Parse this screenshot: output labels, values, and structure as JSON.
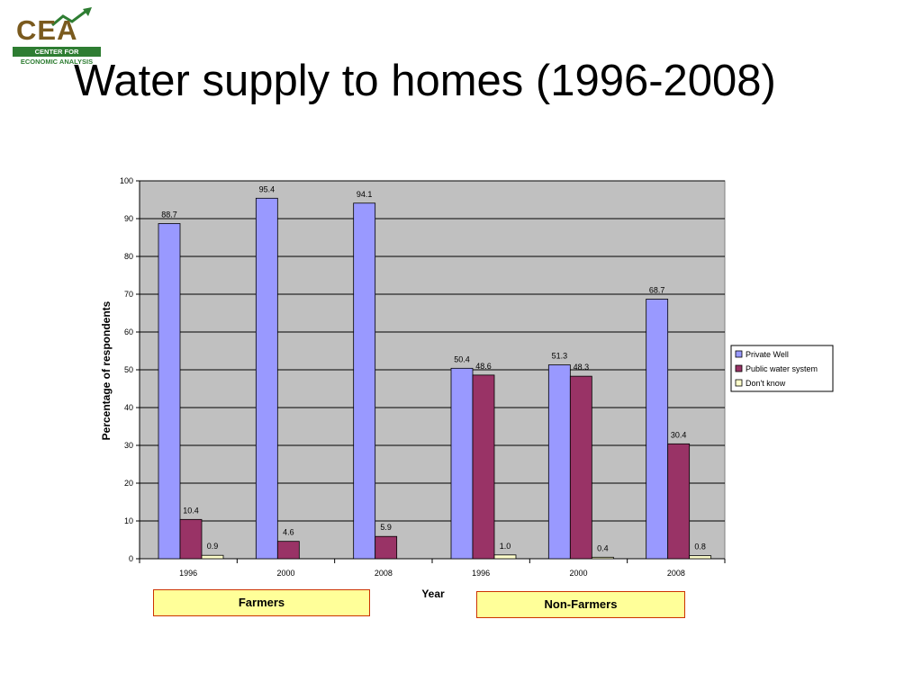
{
  "title": "Water supply to homes (1996-2008)",
  "logo": {
    "text": "CEA",
    "line1": "CENTER FOR",
    "line2": "ECONOMIC ANALYSIS"
  },
  "groups": {
    "farmers": "Farmers",
    "non_farmers": "Non-Farmers"
  },
  "colors": {
    "private_well": "#9999ff",
    "public_water": "#993366",
    "dont_know": "#ffffcc",
    "plot_bg": "#c0c0c0"
  },
  "chart_data": {
    "type": "bar",
    "categories": [
      "1996",
      "2000",
      "2008",
      "1996",
      "2000",
      "2008"
    ],
    "series": [
      {
        "name": "Private Well",
        "values": [
          88.7,
          95.4,
          94.1,
          50.4,
          51.3,
          68.7
        ],
        "labels": [
          "88.7",
          "95.4",
          "94.1",
          "50.4",
          "51.3",
          "68.7"
        ]
      },
      {
        "name": "Public water system",
        "values": [
          10.4,
          4.6,
          5.9,
          48.6,
          48.3,
          30.4
        ],
        "labels": [
          "10.4",
          "4.6",
          "5.9",
          "48.6",
          "48.3",
          "30.4"
        ]
      },
      {
        "name": "Don't know",
        "values": [
          0.9,
          null,
          null,
          1.0,
          0.4,
          0.8
        ],
        "labels": [
          "0.9",
          "",
          "",
          "1.0",
          "0.4",
          "0.8"
        ]
      }
    ],
    "xlabel": "Year",
    "ylabel": "Percentage of respondents",
    "ylim": [
      0,
      100
    ],
    "yticks": [
      0,
      10,
      20,
      30,
      40,
      50,
      60,
      70,
      80,
      90,
      100
    ],
    "grid": true,
    "legend": "right"
  }
}
